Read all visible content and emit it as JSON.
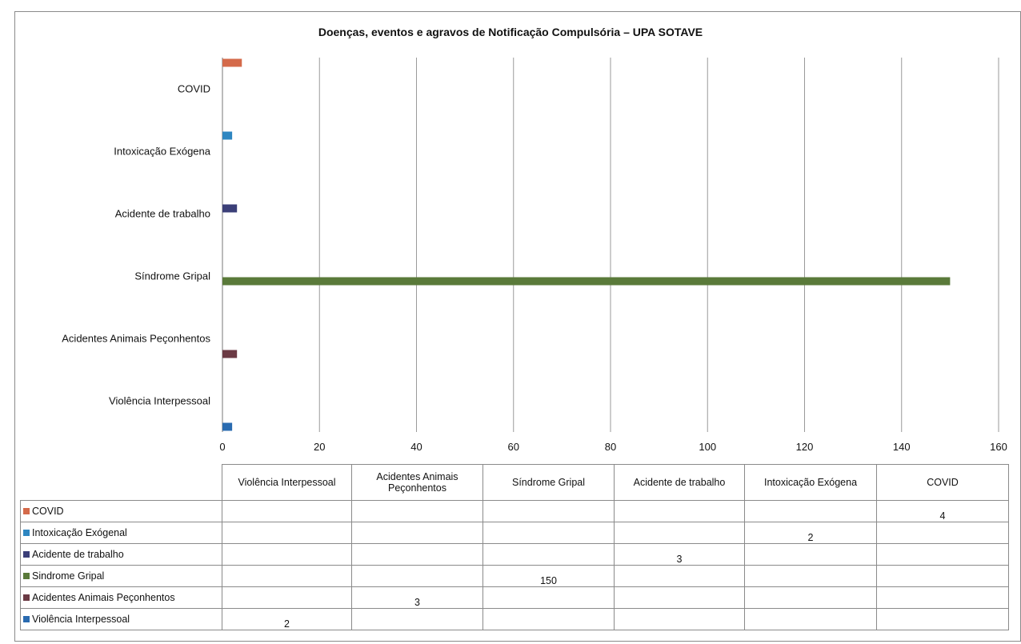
{
  "chart_data": {
    "type": "bar",
    "orientation": "horizontal",
    "title": "Doenças, eventos e agravos de Notificação Compulsória – UPA SOTAVE",
    "categories": [
      "Violência Interpessoal",
      "Acidentes Animais Peçonhentos",
      "Síndrome Gripal",
      "Acidente de trabalho",
      "Intoxicação Exógena",
      "COVID"
    ],
    "xlim": [
      0,
      160
    ],
    "x_ticks": [
      "0",
      "20",
      "40",
      "60",
      "80",
      "100",
      "120",
      "140",
      "160"
    ],
    "grid": true,
    "series": [
      {
        "name": "COVID",
        "table_label": "COVID",
        "color": "#d46a4a",
        "values": [
          null,
          null,
          null,
          null,
          null,
          4
        ],
        "cells": [
          "",
          "",
          "",
          "",
          "",
          "4"
        ]
      },
      {
        "name": "Intoxicação Exógena",
        "table_label": "Intoxicação Exógenal",
        "color": "#2e86c1",
        "values": [
          null,
          null,
          null,
          null,
          2,
          null
        ],
        "cells": [
          "",
          "",
          "",
          "",
          "2",
          ""
        ]
      },
      {
        "name": "Acidente de trabalho",
        "table_label": "Acidente de trabalho",
        "color": "#3b3f78",
        "values": [
          null,
          null,
          null,
          3,
          null,
          null
        ],
        "cells": [
          "",
          "",
          "",
          "3",
          "",
          ""
        ]
      },
      {
        "name": "Síndrome Gripal",
        "table_label": "Sindrome Gripal",
        "color": "#5a7a3a",
        "values": [
          null,
          null,
          150,
          null,
          null,
          null
        ],
        "cells": [
          "",
          "",
          "150",
          "",
          "",
          ""
        ]
      },
      {
        "name": "Acidentes Animais Peçonhentos",
        "table_label": "Acidentes Animais Peçonhentos",
        "color": "#6b3a44",
        "values": [
          null,
          3,
          null,
          null,
          null,
          null
        ],
        "cells": [
          "",
          "3",
          "",
          "",
          "",
          ""
        ]
      },
      {
        "name": "Violência Interpessoal",
        "table_label": "Violência Interpessoal",
        "color": "#2a6bb0",
        "values": [
          2,
          null,
          null,
          null,
          null,
          null
        ],
        "cells": [
          "2",
          "",
          "",
          "",
          "",
          ""
        ]
      }
    ],
    "table_headers": [
      "Violência Interpessoal",
      "Acidentes Animais Peçonhentos",
      "Síndrome Gripal",
      "Acidente de trabalho",
      "Intoxicação Exógena",
      "COVID"
    ],
    "legend": "data table below chart"
  }
}
